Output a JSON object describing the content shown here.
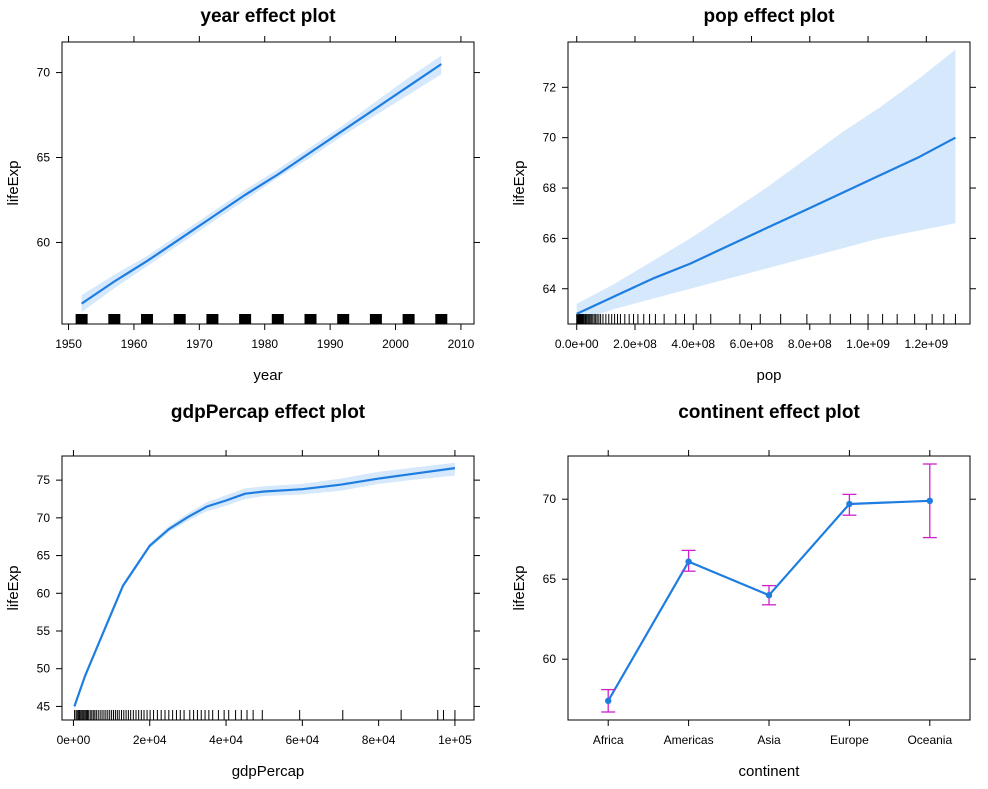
{
  "colors": {
    "fit": "#1e7de0",
    "band": "#d6e8fb",
    "errorbar": "#cc22cc",
    "axis": "#000000"
  },
  "chart_data": [
    {
      "type": "line",
      "title": "year effect plot",
      "xlabel": "year",
      "ylabel": "lifeExp",
      "xlim": [
        1949,
        2012
      ],
      "ylim": [
        55.2,
        71.8
      ],
      "xticks": [
        1950,
        1960,
        1970,
        1980,
        1990,
        2000,
        2010
      ],
      "xtick_labels": [
        "1950",
        "1960",
        "1970",
        "1980",
        "1990",
        "2000",
        "2010"
      ],
      "yticks": [
        60,
        65,
        70
      ],
      "ytick_labels": [
        "60",
        "65",
        "70"
      ],
      "x": [
        1952,
        1957,
        1962,
        1967,
        1972,
        1977,
        1982,
        1987,
        1992,
        1997,
        2002,
        2007
      ],
      "y": [
        56.4,
        57.7,
        58.9,
        60.2,
        61.5,
        62.8,
        64.0,
        65.3,
        66.6,
        67.9,
        69.2,
        70.5
      ],
      "lower": [
        55.9,
        57.3,
        58.6,
        59.9,
        61.2,
        62.5,
        63.8,
        65.0,
        66.3,
        67.5,
        68.7,
        69.9
      ],
      "upper": [
        56.9,
        58.1,
        59.2,
        60.5,
        61.8,
        63.1,
        64.3,
        65.6,
        66.9,
        68.3,
        69.7,
        71.0
      ],
      "rug": {
        "style": "block",
        "x": [
          1952,
          1957,
          1962,
          1967,
          1972,
          1977,
          1982,
          1987,
          1992,
          1997,
          2002,
          2007
        ]
      }
    },
    {
      "type": "line",
      "title": "pop effect plot",
      "xlabel": "pop",
      "ylabel": "lifeExp",
      "xlim": [
        -30000000.0,
        1350000000.0
      ],
      "ylim": [
        62.6,
        73.8
      ],
      "xticks": [
        0,
        200000000.0,
        400000000.0,
        600000000.0,
        800000000.0,
        1000000000.0,
        1200000000.0
      ],
      "xtick_labels": [
        "0.0e+00",
        "2.0e+08",
        "4.0e+08",
        "6.0e+08",
        "8.0e+08",
        "1.0e+09",
        "1.2e+09"
      ],
      "yticks": [
        64,
        66,
        68,
        70,
        72
      ],
      "ytick_labels": [
        "64",
        "66",
        "68",
        "70",
        "72"
      ],
      "x": [
        0,
        130000000.0,
        260000000.0,
        390000000.0,
        520000000.0,
        650000000.0,
        780000000.0,
        910000000.0,
        1040000000.0,
        1170000000.0,
        1300000000.0
      ],
      "y": [
        63.0,
        63.7,
        64.4,
        65.0,
        65.7,
        66.4,
        67.1,
        67.8,
        68.5,
        69.2,
        70.0
      ],
      "lower": [
        62.7,
        63.2,
        63.6,
        64.0,
        64.4,
        64.8,
        65.2,
        65.6,
        66.0,
        66.3,
        66.6
      ],
      "upper": [
        63.4,
        64.2,
        65.1,
        66.0,
        67.0,
        68.0,
        69.1,
        70.2,
        71.2,
        72.3,
        73.5
      ],
      "rug": {
        "style": "ticks",
        "x": [
          0,
          2000000.0,
          4000000.0,
          6000000.0,
          8000000.0,
          10000000.0,
          12000000.0,
          14000000.0,
          16000000.0,
          18000000.0,
          20000000.0,
          23000000.0,
          26000000.0,
          30000000.0,
          34000000.0,
          38000000.0,
          42000000.0,
          46000000.0,
          50000000.0,
          55000000.0,
          60000000.0,
          65000000.0,
          70000000.0,
          76000000.0,
          82000000.0,
          90000000.0,
          100000000.0,
          110000000.0,
          120000000.0,
          130000000.0,
          140000000.0,
          150000000.0,
          165000000.0,
          180000000.0,
          195000000.0,
          210000000.0,
          230000000.0,
          250000000.0,
          270000000.0,
          300000000.0,
          340000000.0,
          370000000.0,
          410000000.0,
          460000000.0,
          560000000.0,
          630000000.0,
          700000000.0,
          790000000.0,
          870000000.0,
          940000000.0,
          1000000000.0,
          1050000000.0,
          1100000000.0,
          1160000000.0,
          1220000000.0,
          1260000000.0,
          1300000000.0
        ]
      }
    },
    {
      "type": "line",
      "title": "gdpPercap effect plot",
      "xlabel": "gdpPercap",
      "ylabel": "lifeExp",
      "xlim": [
        -3000,
        105000
      ],
      "ylim": [
        43.2,
        78.2
      ],
      "xticks": [
        0,
        20000,
        40000,
        60000,
        80000,
        100000
      ],
      "xtick_labels": [
        "0e+00",
        "2e+04",
        "4e+04",
        "6e+04",
        "8e+04",
        "1e+05"
      ],
      "yticks": [
        45,
        50,
        55,
        60,
        65,
        70,
        75
      ],
      "ytick_labels": [
        "45",
        "50",
        "55",
        "60",
        "65",
        "70",
        "75"
      ],
      "x": [
        241,
        3000,
        7000,
        13000,
        20000,
        25000,
        30000,
        35000,
        40000,
        45000,
        50000,
        60000,
        70000,
        80000,
        90000,
        100000
      ],
      "y": [
        45.0,
        49.0,
        53.8,
        61.0,
        66.3,
        68.5,
        70.1,
        71.5,
        72.3,
        73.2,
        73.5,
        73.8,
        74.4,
        75.2,
        75.9,
        76.6
      ],
      "lower": [
        44.6,
        48.7,
        53.5,
        60.7,
        66.0,
        68.1,
        69.6,
        70.9,
        71.6,
        72.5,
        72.9,
        73.1,
        73.6,
        74.5,
        75.1,
        75.6
      ],
      "upper": [
        45.4,
        49.3,
        54.1,
        61.3,
        66.6,
        68.9,
        70.6,
        72.1,
        73.0,
        73.9,
        74.2,
        74.5,
        75.2,
        76.1,
        76.7,
        77.3
      ],
      "rug": {
        "style": "ticks",
        "x": [
          300,
          700,
          1000,
          1300,
          1600,
          1900,
          2200,
          2500,
          2800,
          3100,
          3400,
          3700,
          4000,
          4400,
          4800,
          5200,
          5600,
          6000,
          6500,
          7000,
          7500,
          8000,
          8500,
          9000,
          9500,
          10000,
          10500,
          11000,
          11500,
          12000,
          12600,
          13200,
          13800,
          14400,
          15000,
          15700,
          16400,
          17100,
          17800,
          18500,
          19300,
          20100,
          21000,
          22000,
          23000,
          24000,
          25000,
          26000,
          27000,
          28000,
          29000,
          30500,
          31500,
          32500,
          33500,
          34500,
          35500,
          36500,
          38000,
          39500,
          40700,
          42500,
          44000,
          45500,
          47100,
          49500,
          59300,
          70600,
          85900,
          95500,
          97000,
          100000
        ]
      }
    },
    {
      "type": "line",
      "title": "continent effect plot",
      "xlabel": "continent",
      "ylabel": "lifeExp",
      "categories": [
        "Africa",
        "Americas",
        "Asia",
        "Europe",
        "Oceania"
      ],
      "ylim": [
        56.2,
        72.7
      ],
      "yticks": [
        60,
        65,
        70
      ],
      "ytick_labels": [
        "60",
        "65",
        "70"
      ],
      "values": [
        57.4,
        66.1,
        64.0,
        69.7,
        69.9
      ],
      "lower": [
        56.7,
        65.5,
        63.4,
        69.0,
        67.6
      ],
      "upper": [
        58.1,
        66.8,
        64.6,
        70.3,
        72.2
      ]
    }
  ]
}
